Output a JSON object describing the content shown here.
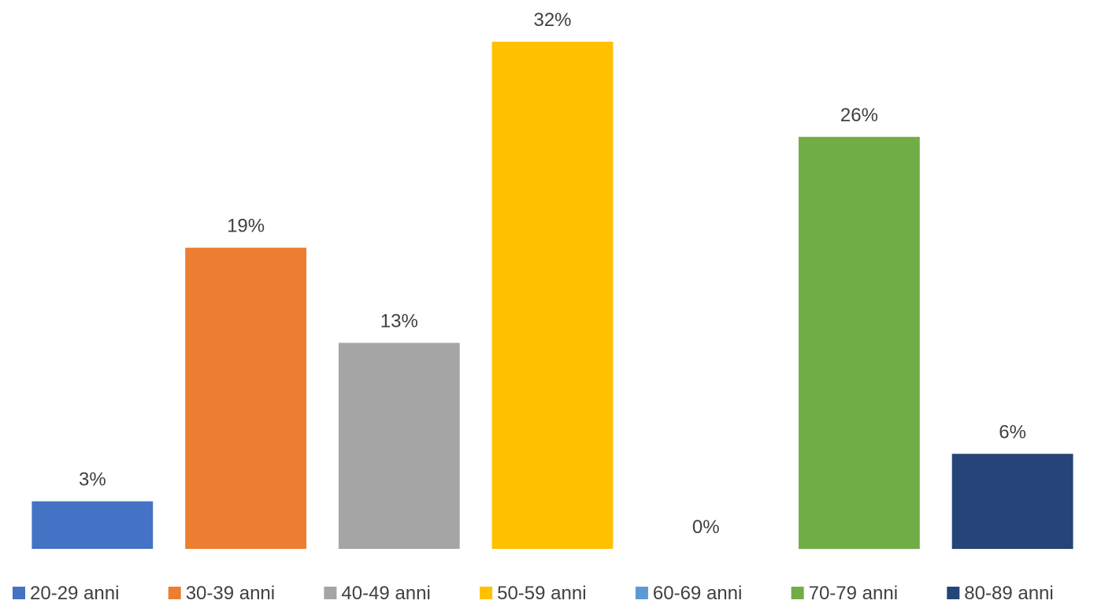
{
  "chart_data": {
    "type": "bar",
    "title": "",
    "xlabel": "",
    "ylabel": "",
    "categories": [
      "20-29 anni",
      "30-39 anni",
      "40-49 anni",
      "50-59 anni",
      "60-69 anni",
      "70-79 anni",
      "80-89 anni"
    ],
    "values": [
      3,
      19,
      13,
      32,
      0,
      26,
      6
    ],
    "value_labels": [
      "3%",
      "19%",
      "13%",
      "32%",
      "0%",
      "26%",
      "6%"
    ],
    "colors": [
      "#4472C4",
      "#ED7D31",
      "#A5A5A5",
      "#FFC000",
      "#5B9BD5",
      "#70AD47",
      "#264478"
    ],
    "ylim": [
      0,
      32
    ],
    "grid": false,
    "legend_position": "bottom"
  }
}
